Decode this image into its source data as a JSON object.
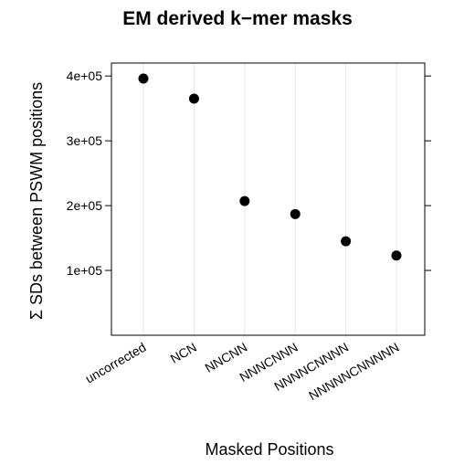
{
  "chart_data": {
    "type": "scatter",
    "title": "EM derived k−mer masks",
    "xlabel": "Masked Positions",
    "ylabel": "Σ SDs between PSWM positions",
    "categories": [
      "uncorrected",
      "NCN",
      "NNCNN",
      "NNNCNNN",
      "NNNNCNNNN",
      "NNNNNCNNNNN"
    ],
    "series": [
      {
        "values": [
          396000,
          365000,
          207000,
          187000,
          145000,
          123000
        ]
      }
    ],
    "ylim": [
      0,
      420000
    ],
    "y_ticks": [
      100000,
      200000,
      300000,
      400000
    ],
    "y_tick_labels": [
      "1e+05",
      "2e+05",
      "3e+05",
      "4e+05"
    ],
    "grid": "vertical",
    "colors": {
      "point": "#000000",
      "grid": "#e6e6e6",
      "axis": "#000000"
    }
  }
}
